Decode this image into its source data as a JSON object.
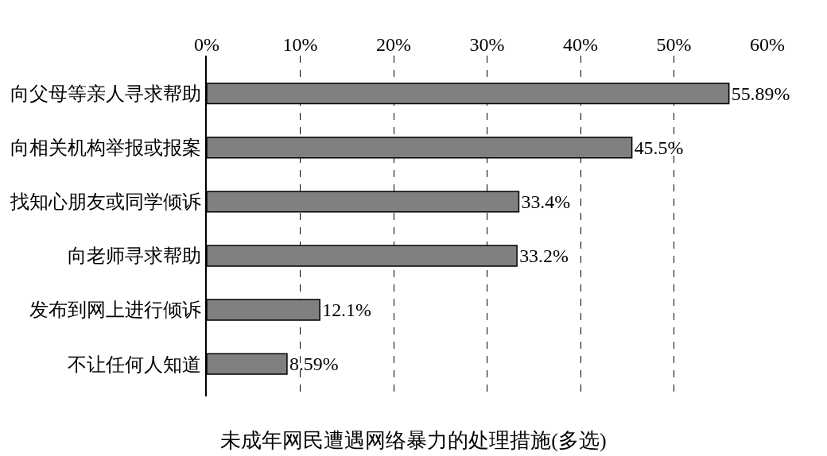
{
  "chart_data": {
    "type": "bar",
    "orientation": "horizontal",
    "title": "未成年网民遭遇网络暴力的处理措施(多选)",
    "categories": [
      "向父母等亲人寻求帮助",
      "向相关机构举报或报案",
      "找知心朋友或同学倾诉",
      "向老师寻求帮助",
      "发布到网上进行倾诉",
      "不让任何人知道"
    ],
    "values": [
      55.89,
      45.5,
      33.4,
      33.2,
      12.1,
      8.59
    ],
    "value_labels": [
      "55.89%",
      "45.5%",
      "33.4%",
      "33.2%",
      "12.1%",
      "8.59%"
    ],
    "color": "#808080",
    "xlim": [
      0,
      60
    ],
    "xticks": [
      {
        "value": 0,
        "label": "0%"
      },
      {
        "value": 10,
        "label": "10%"
      },
      {
        "value": 20,
        "label": "20%"
      },
      {
        "value": 30,
        "label": "30%"
      },
      {
        "value": 40,
        "label": "40%"
      },
      {
        "value": 50,
        "label": "50%"
      },
      {
        "value": 60,
        "label": "60%"
      }
    ],
    "grid": "x",
    "line_style": "dashed",
    "legend": false
  }
}
